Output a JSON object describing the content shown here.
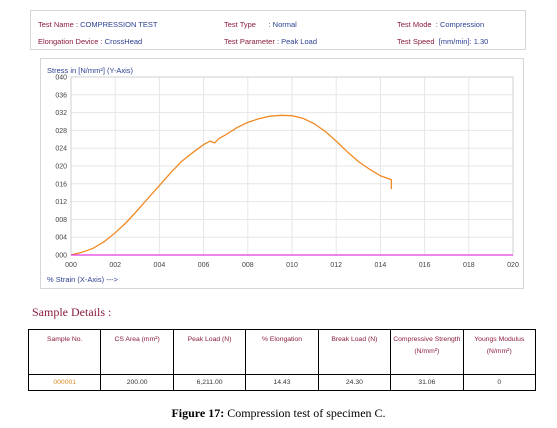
{
  "header": {
    "test_name_label": "Test Name : ",
    "test_name_value": "COMPRESSION TEST",
    "test_type_label": "Test Type",
    "test_type_value": ": Normal",
    "test_mode_label": "Test Mode",
    "test_mode_value": ": Compression",
    "elongation_device_label": "Elongation Device : ",
    "elongation_device_value": "CrossHead",
    "test_parameter_label": "Test Parameter",
    "test_parameter_value": ": Peak Load",
    "test_speed_label": "Test Speed",
    "test_speed_value": "[mm/min]: 1.30"
  },
  "chart_data": {
    "type": "line",
    "ylabel": "Stress in [N/mm²] (Y-Axis)",
    "xlabel": "% Strain (X-Axis) --->",
    "xlim": [
      0,
      20
    ],
    "ylim": [
      0,
      40
    ],
    "x_ticks": [
      "000",
      "002",
      "004",
      "006",
      "008",
      "010",
      "012",
      "014",
      "016",
      "018",
      "020"
    ],
    "y_ticks": [
      "000",
      "004",
      "008",
      "012",
      "016",
      "020",
      "024",
      "028",
      "032",
      "036",
      "040"
    ],
    "grid": true,
    "series": [
      {
        "color": "#f08a24",
        "x": [
          0.0,
          0.5,
          1.0,
          1.5,
          2.0,
          2.5,
          3.0,
          3.5,
          4.0,
          4.5,
          5.0,
          5.5,
          6.0,
          6.3,
          6.5,
          6.7,
          7.0,
          7.5,
          8.0,
          8.5,
          9.0,
          9.5,
          10.0,
          10.5,
          11.0,
          11.5,
          12.0,
          12.5,
          13.0,
          13.5,
          14.0,
          14.4,
          14.5,
          14.5
        ],
        "y": [
          0.0,
          0.6,
          1.5,
          3.0,
          5.0,
          7.3,
          10.0,
          12.8,
          15.6,
          18.4,
          21.0,
          23.0,
          24.8,
          25.6,
          25.2,
          26.2,
          27.0,
          28.6,
          29.8,
          30.6,
          31.2,
          31.4,
          31.3,
          30.7,
          29.5,
          27.8,
          25.6,
          23.2,
          21.0,
          19.3,
          17.8,
          17.1,
          16.9,
          14.8
        ]
      },
      {
        "color": "#e43bdf",
        "x": [
          0,
          20
        ],
        "y": [
          0,
          0
        ]
      }
    ]
  },
  "sample_details": {
    "title": "Sample Details :",
    "columns": [
      "Sample No.",
      "CS Area (mm²)",
      "Peak Load (N)",
      "% Elongation",
      "Break Load (N)",
      "Compressive Strength (N/mm²)",
      "Youngs Modulus (N/mm²)"
    ],
    "rows": [
      [
        "000001",
        "200.00",
        "6,211.00",
        "14.43",
        "24.30",
        "31.06",
        "0"
      ]
    ]
  },
  "caption": {
    "label": "Figure 17:",
    "text": " Compression test of specimen C."
  }
}
